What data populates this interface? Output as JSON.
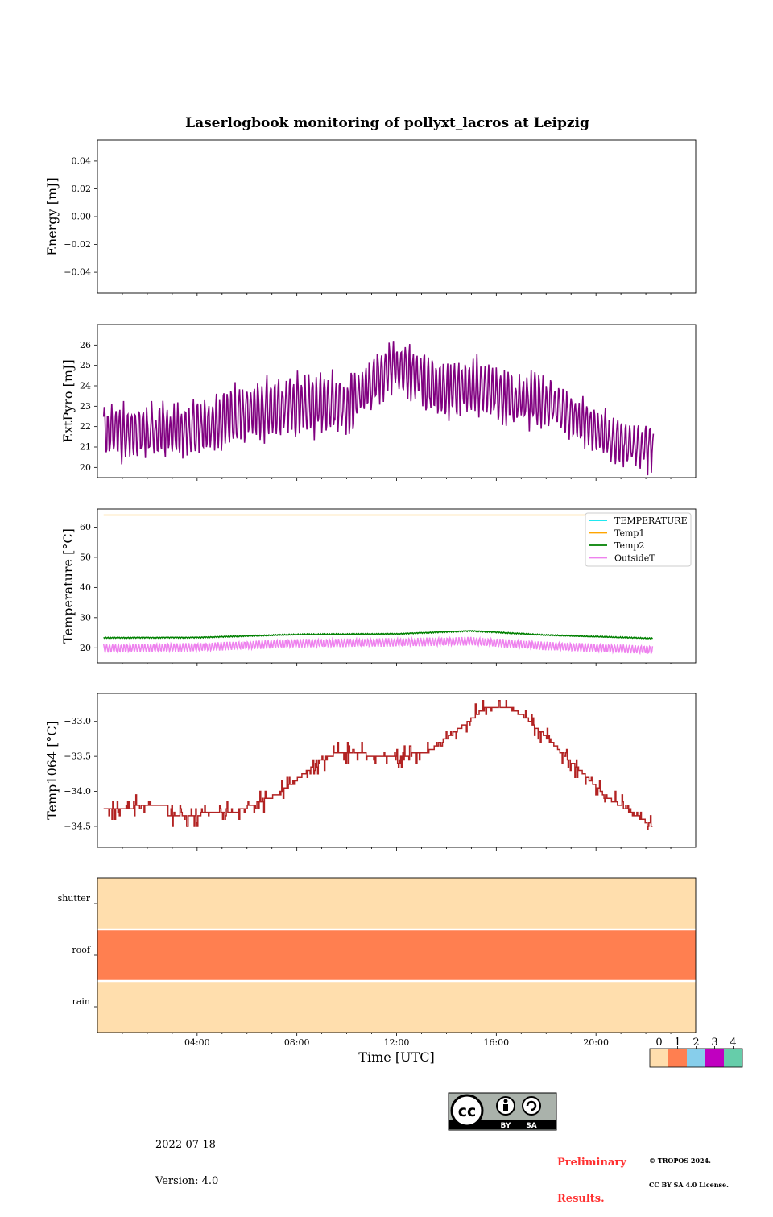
{
  "page": {
    "title": "Laserlogbook monitoring of pollyxt_lacros at Leipzig",
    "date": "2022-07-18",
    "version": "Version: 4.0",
    "preliminary_line1": "Preliminary",
    "preliminary_line2": "Results.",
    "copyright_line1": "© TROPOS 2024.",
    "copyright_line2": "CC BY SA 4.0 License.",
    "license_badge": {
      "icon": "cc-by-sa-icon",
      "labels": [
        "BY",
        "SA"
      ]
    }
  },
  "chart_data": [
    {
      "id": "energy",
      "type": "line",
      "ylabel": "Energy [mJ]",
      "ylim": [
        -0.055,
        0.055
      ],
      "yticks": [
        0.04,
        0.02,
        0.0,
        -0.02,
        -0.04
      ],
      "ytick_labels": [
        "0.04",
        "0.02",
        "0.00",
        "−0.02",
        "−0.04"
      ],
      "series": []
    },
    {
      "id": "extpyro",
      "type": "line",
      "ylabel": "ExtPyro [mJ]",
      "ylim": [
        19.5,
        27.0
      ],
      "yticks": [
        20,
        21,
        22,
        23,
        24,
        25,
        26
      ],
      "ytick_labels": [
        "20",
        "21",
        "22",
        "23",
        "24",
        "25",
        "26"
      ],
      "x_hours": [
        0.25,
        2,
        4,
        6,
        8,
        10,
        11.9,
        13,
        14,
        15.5,
        16.5,
        18,
        20,
        21.5,
        22.3
      ],
      "mean": [
        21.7,
        21.7,
        21.9,
        22.7,
        23.1,
        23.0,
        25.1,
        24.3,
        23.7,
        24.0,
        23.3,
        23.2,
        21.8,
        21.0,
        21.0
      ],
      "amplitude": [
        1.2,
        1.2,
        1.2,
        1.4,
        1.4,
        1.3,
        1.2,
        1.3,
        1.3,
        1.2,
        1.2,
        1.2,
        1.0,
        1.0,
        1.0
      ],
      "color": "#800080"
    },
    {
      "id": "temperature",
      "type": "line",
      "ylabel": "Temperature [°C]",
      "ylim": [
        15,
        66
      ],
      "yticks": [
        20,
        30,
        40,
        50,
        60
      ],
      "ytick_labels": [
        "20",
        "30",
        "40",
        "50",
        "60"
      ],
      "legend_placement": "upper-right",
      "x_hours": [
        0.25,
        4,
        8,
        12,
        15,
        18,
        22.3
      ],
      "series": [
        {
          "name": "TEMPERATURE",
          "color": "#00e5ee",
          "values": []
        },
        {
          "name": "Temp1",
          "color": "#ffa500",
          "values": [
            64,
            64,
            64,
            64,
            64,
            64,
            64
          ]
        },
        {
          "name": "Temp2",
          "color": "#008000",
          "values": [
            23.3,
            23.4,
            24.4,
            24.6,
            25.6,
            24.2,
            23.1
          ]
        },
        {
          "name": "OutsideT",
          "color": "#ee82ee",
          "values": [
            19.8,
            20.2,
            21.5,
            21.8,
            22.2,
            20.6,
            19.3
          ],
          "amplitude": 1.4
        }
      ]
    },
    {
      "id": "temp1064",
      "type": "line",
      "ylabel": "Temp1064 [°C]",
      "ylim": [
        -34.8,
        -32.6
      ],
      "yticks": [
        -33.0,
        -33.5,
        -34.0,
        -34.5
      ],
      "ytick_labels": [
        "−33.0",
        "−33.5",
        "−34.0",
        "−34.5"
      ],
      "x_hours": [
        0.25,
        2.7,
        2.8,
        5.5,
        7.2,
        9.0,
        9.6,
        12.0,
        13.2,
        14.7,
        15.6,
        16.5,
        17.2,
        18.2,
        20.5,
        22.3
      ],
      "values": [
        -34.25,
        -34.2,
        -34.35,
        -34.3,
        -34.05,
        -33.55,
        -33.45,
        -33.5,
        -33.45,
        -33.05,
        -32.8,
        -32.8,
        -32.95,
        -33.3,
        -34.1,
        -34.5
      ],
      "color": "#b22222"
    },
    {
      "id": "flags",
      "type": "heatmap",
      "rows": [
        "shutter",
        "roof",
        "rain"
      ],
      "values": [
        0,
        1,
        0
      ],
      "colors": [
        "#ffdead",
        "#ff7f50",
        "#87ceeb",
        "#c000c0",
        "#66cdaa"
      ],
      "xlabel": "Time [UTC]",
      "xlim_hours": [
        0,
        24
      ],
      "xticks_hours": [
        4,
        8,
        12,
        16,
        20
      ],
      "xtick_labels": [
        "04:00",
        "08:00",
        "12:00",
        "16:00",
        "20:00"
      ],
      "colorbar": {
        "labels": [
          "0",
          "1",
          "2",
          "3",
          "4"
        ]
      }
    }
  ]
}
